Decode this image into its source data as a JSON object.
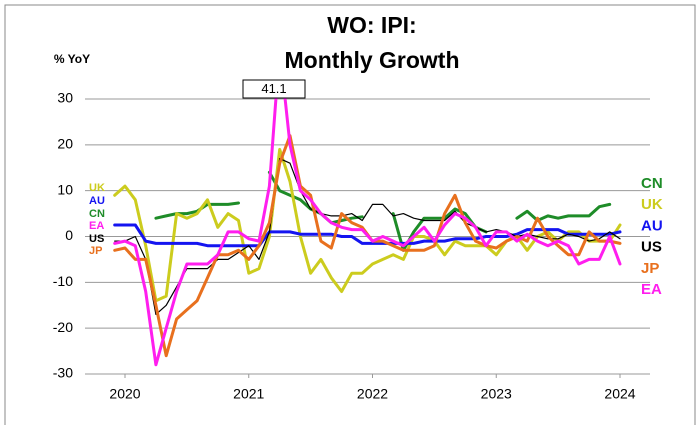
{
  "chart_data": {
    "type": "line",
    "title_lines": [
      "WO: IPI:",
      "Monthly Growth"
    ],
    "y_label": "% YoY",
    "x": [
      2019.917,
      2020,
      2020.083,
      2020.167,
      2020.25,
      2020.333,
      2020.417,
      2020.5,
      2020.583,
      2020.667,
      2020.75,
      2020.833,
      2020.917,
      2021,
      2021.083,
      2021.167,
      2021.25,
      2021.333,
      2021.417,
      2021.5,
      2021.583,
      2021.667,
      2021.75,
      2021.833,
      2021.917,
      2022,
      2022.083,
      2022.167,
      2022.25,
      2022.333,
      2022.417,
      2022.5,
      2022.583,
      2022.667,
      2022.75,
      2022.833,
      2022.917,
      2023,
      2023.083,
      2023.167,
      2023.25,
      2023.333,
      2023.417,
      2023.5,
      2023.583,
      2023.667,
      2023.75,
      2023.833,
      2023.917,
      2024
    ],
    "xlim": [
      2019.92,
      2024.25
    ],
    "xticks": [
      2020,
      2021,
      2022,
      2023,
      2024
    ],
    "ylim": [
      -30,
      30
    ],
    "yticks": [
      -30,
      -20,
      -10,
      0,
      10,
      20,
      30
    ],
    "grid": true,
    "series": [
      {
        "name": "CN",
        "color": "#1e8c28",
        "width": 3,
        "values": [
          null,
          null,
          null,
          null,
          4,
          4.5,
          5,
          5,
          5.5,
          7,
          7,
          7,
          7.3,
          null,
          null,
          14,
          10,
          9,
          8,
          6,
          5,
          3,
          3.5,
          4,
          4.3,
          null,
          null,
          5,
          -3,
          1,
          4,
          4,
          4,
          6,
          5,
          2,
          1,
          null,
          null,
          4,
          5.5,
          3.5,
          4.5,
          4,
          4.5,
          4.5,
          4.5,
          6.5,
          7,
          null
        ]
      },
      {
        "name": "UK",
        "color": "#cccc1e",
        "width": 3,
        "values": [
          9,
          11,
          8,
          -2,
          -14,
          -13,
          5,
          4,
          5,
          8,
          2,
          5,
          3.5,
          -8,
          -7,
          0,
          19,
          12,
          0,
          -8,
          -5,
          -9,
          -12,
          -8,
          -8,
          -6,
          -5,
          -4,
          -5,
          0,
          0,
          -1,
          -4,
          -1,
          -2,
          -2,
          -2,
          -4,
          -1,
          0,
          -3,
          0,
          1,
          -1,
          1,
          1,
          -1,
          -1,
          -1,
          2.5
        ]
      },
      {
        "name": "AU",
        "color": "#1414f0",
        "width": 3,
        "values": [
          2.5,
          2.5,
          2.5,
          -1,
          -1.5,
          -1.5,
          -1.5,
          -1.5,
          -1.5,
          -2,
          -2,
          -2,
          -2,
          -2,
          -2,
          1,
          1,
          1,
          0.5,
          0.5,
          0.5,
          0.5,
          0,
          0,
          -1.5,
          -1.5,
          -1.5,
          -1.5,
          -1.5,
          -1.5,
          -1,
          -1,
          -1,
          -0.5,
          -0.5,
          -0.5,
          0,
          0,
          0,
          0.5,
          1.5,
          1.5,
          1.5,
          1.5,
          0.5,
          0.5,
          0.5,
          0.5,
          0.5,
          1
        ]
      },
      {
        "name": "US",
        "color": "#000000",
        "width": 1.2,
        "values": [
          -1,
          -1,
          0,
          -5,
          -17,
          -15,
          -11,
          -7,
          -7,
          -7,
          -5,
          -5,
          -3.5,
          -2,
          -5,
          1,
          17,
          16,
          10,
          6,
          5,
          4.5,
          4.5,
          5,
          3.5,
          7,
          7,
          4.5,
          5,
          4,
          3.5,
          3.5,
          3.5,
          5.5,
          3,
          2,
          1,
          1.5,
          1,
          0,
          0.5,
          0,
          -0.5,
          -0.5,
          0.5,
          0,
          -1,
          -0.5,
          1,
          -0.5
        ]
      },
      {
        "name": "JP",
        "color": "#e8701e",
        "width": 3,
        "values": [
          -3,
          -2.5,
          -5,
          -5,
          -15,
          -26,
          -18,
          -16,
          -14,
          -9,
          -4,
          -4,
          -3,
          -5,
          -2,
          3,
          16,
          22,
          11,
          9,
          -1,
          -2.5,
          5,
          3,
          2,
          -1,
          -1,
          -2,
          -3,
          -3,
          -3,
          -2,
          5,
          9,
          3,
          -1,
          -2,
          -2.5,
          -1,
          0,
          -1,
          4,
          0,
          -2,
          -4,
          -4,
          1,
          -1,
          -1,
          -1.5
        ]
      },
      {
        "name": "EA",
        "color": "#ff1eee",
        "width": 3,
        "values": [
          -1.5,
          -1,
          -2,
          -12,
          -28,
          -20,
          -12,
          -6,
          -6,
          -6,
          -4,
          1,
          1,
          -0.5,
          -1,
          11,
          41.1,
          20,
          10,
          8,
          5,
          3,
          2,
          1.5,
          1.5,
          -1,
          0,
          -1,
          -2,
          0,
          2,
          -1,
          2.5,
          5,
          4,
          2,
          -2,
          1,
          1,
          -1,
          0.5,
          -1,
          -2,
          -1,
          -2,
          -6,
          -5,
          -5,
          0,
          -6
        ]
      }
    ]
  }
}
